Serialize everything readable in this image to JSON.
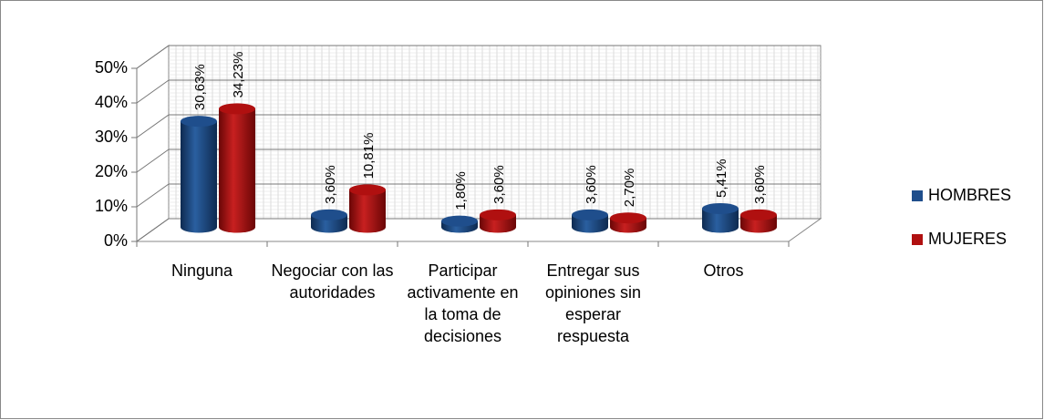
{
  "chart_data": {
    "type": "bar",
    "categories": [
      "Ninguna",
      "Negociar con las autoridades",
      "Participar activamente en la toma de decisiones",
      "Entregar sus opiniones sin esperar respuesta",
      "Otros"
    ],
    "series": [
      {
        "name": "HOMBRES",
        "color": "#1f4e8c",
        "values": [
          30.63,
          3.6,
          1.8,
          3.6,
          5.41
        ],
        "value_labels": [
          "30,63%",
          "3,60%",
          "1,80%",
          "3,60%",
          "5,41%"
        ]
      },
      {
        "name": "MUJERES",
        "color": "#b01010",
        "values": [
          34.23,
          10.81,
          3.6,
          2.7,
          3.6
        ],
        "value_labels": [
          "34,23%",
          "10,81%",
          "3,60%",
          "2,70%",
          "3,60%"
        ]
      }
    ],
    "ylim": [
      0,
      50
    ],
    "yticks": [
      {
        "value": 0,
        "label": "0%"
      },
      {
        "value": 10,
        "label": "10%"
      },
      {
        "value": 20,
        "label": "20%"
      },
      {
        "value": 30,
        "label": "30%"
      },
      {
        "value": 40,
        "label": "40%"
      },
      {
        "value": 50,
        "label": "50%"
      }
    ],
    "grid": true,
    "legend": "right"
  }
}
